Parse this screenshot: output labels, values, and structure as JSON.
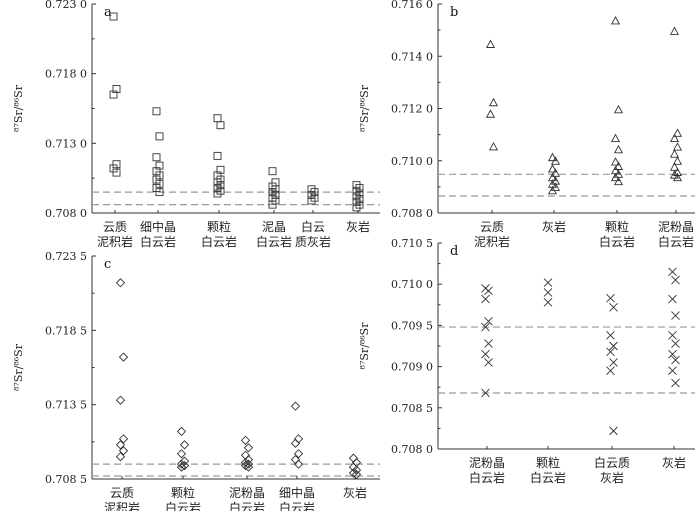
{
  "chart_data": [
    {
      "type": "scatter",
      "panel": "a",
      "ylabel": "⁸⁷Sr/⁸⁶Sr",
      "ylim": [
        0.708,
        0.723
      ],
      "yticks": [
        "0.708 0",
        "0.713 0",
        "0.718 0",
        "0.723 0"
      ],
      "ytick_values": [
        0.708,
        0.713,
        0.718,
        0.723
      ],
      "marker": "square",
      "reference_lines": [
        0.7086,
        0.7095
      ],
      "categories": [
        {
          "label_lines": [
            "云质",
            "泥积岩"
          ],
          "values": [
            0.7221,
            0.7169,
            0.7165,
            0.7115,
            0.7112,
            0.7109
          ]
        },
        {
          "label_lines": [
            "细中晶",
            "白云岩"
          ],
          "values": [
            0.7153,
            0.7135,
            0.712,
            0.7114,
            0.711,
            0.7107,
            0.7104,
            0.7101,
            0.7098,
            0.7095
          ]
        },
        {
          "label_lines": [
            "颗粒",
            "白云岩"
          ],
          "values": [
            0.7148,
            0.7143,
            0.7121,
            0.7111,
            0.7107,
            0.7104,
            0.7102,
            0.71,
            0.7098,
            0.7096,
            0.7094
          ]
        },
        {
          "label_lines": [
            "泥晶",
            "白云岩"
          ],
          "values": [
            0.711,
            0.7102,
            0.7099,
            0.7097,
            0.7095,
            0.7093,
            0.7091,
            0.7089,
            0.7086
          ]
        },
        {
          "label_lines": [
            "白云",
            "质灰岩"
          ],
          "values": [
            0.7097,
            0.7095,
            0.7093,
            0.7091,
            0.7089
          ]
        },
        {
          "label_lines": [
            "灰岩"
          ],
          "values": [
            0.71,
            0.7098,
            0.7096,
            0.7094,
            0.7092,
            0.709,
            0.7088,
            0.7086,
            0.7084
          ]
        }
      ]
    },
    {
      "type": "scatter",
      "panel": "b",
      "ylabel": "⁸⁷Sr/⁸⁶Sr",
      "ylim": [
        0.708,
        0.716
      ],
      "yticks": [
        "0.708 0",
        "0.710 0",
        "0.712 0",
        "0.714 0",
        "0.716 0"
      ],
      "ytick_values": [
        0.708,
        0.71,
        0.712,
        0.714,
        0.716
      ],
      "marker": "triangle",
      "reference_lines": [
        0.70865,
        0.70948
      ],
      "categories": [
        {
          "label_lines": [
            "云质",
            "泥积岩"
          ],
          "values": [
            0.71445,
            0.71222,
            0.71178,
            0.71053
          ]
        },
        {
          "label_lines": [
            "灰岩"
          ],
          "values": [
            0.71012,
            0.70998,
            0.70968,
            0.70952,
            0.70935,
            0.70922,
            0.7091,
            0.70898,
            0.70885
          ]
        },
        {
          "label_lines": [
            "颗粒",
            "白云岩"
          ],
          "values": [
            0.71535,
            0.71195,
            0.71085,
            0.71042,
            0.70995,
            0.70978,
            0.70962,
            0.70948,
            0.70935,
            0.7092
          ]
        },
        {
          "label_lines": [
            "泥粉晶",
            "白云岩"
          ],
          "values": [
            0.71495,
            0.71105,
            0.71085,
            0.71052,
            0.71025,
            0.70998,
            0.70975,
            0.70955,
            0.70945,
            0.70935
          ]
        }
      ]
    },
    {
      "type": "scatter",
      "panel": "c",
      "ylabel": "⁸⁷Sr/⁸⁶Sr",
      "ylim": [
        0.7085,
        0.7235
      ],
      "yticks": [
        "0.708 5",
        "0.713 5",
        "0.718 5",
        "0.723 5"
      ],
      "ytick_values": [
        0.7085,
        0.7135,
        0.7185,
        0.7235
      ],
      "marker": "diamond",
      "reference_lines": [
        0.7087,
        0.7095
      ],
      "categories": [
        {
          "label_lines": [
            "云质",
            "泥积岩"
          ],
          "values": [
            0.7217,
            0.7167,
            0.7138,
            0.7112,
            0.7108,
            0.7104,
            0.71
          ]
        },
        {
          "label_lines": [
            "颗粒",
            "白云岩"
          ],
          "values": [
            0.7117,
            0.7108,
            0.7102,
            0.7097,
            0.7095,
            0.7094,
            0.7093
          ]
        },
        {
          "label_lines": [
            "泥粉晶",
            "白云岩"
          ],
          "values": [
            0.7111,
            0.7106,
            0.7101,
            0.7098,
            0.7096,
            0.7095,
            0.7094,
            0.7093
          ]
        },
        {
          "label_lines": [
            "细中晶",
            "白云岩"
          ],
          "values": [
            0.7134,
            0.7112,
            0.7109,
            0.7102,
            0.7098,
            0.7095
          ]
        },
        {
          "label_lines": [
            "灰岩"
          ],
          "values": [
            0.7099,
            0.7096,
            0.7093,
            0.7091,
            0.7089,
            0.7088
          ]
        }
      ]
    },
    {
      "type": "scatter",
      "panel": "d",
      "ylabel": "⁸⁷Sr/⁸⁶Sr",
      "ylim": [
        0.708,
        0.7105
      ],
      "yticks": [
        "0.708 0",
        "0.708 5",
        "0.709 0",
        "0.709 5",
        "0.710 0",
        "0.710 5"
      ],
      "ytick_values": [
        0.708,
        0.7085,
        0.709,
        0.7095,
        0.71,
        0.7105
      ],
      "marker": "cross",
      "reference_lines": [
        0.70868,
        0.70948
      ],
      "categories": [
        {
          "label_lines": [
            "泥粉晶",
            "白云岩"
          ],
          "values": [
            0.70995,
            0.70992,
            0.70982,
            0.70955,
            0.70948,
            0.70928,
            0.70915,
            0.70905,
            0.70868
          ]
        },
        {
          "label_lines": [
            "颗粒",
            "白云岩"
          ],
          "values": [
            0.71002,
            0.7099,
            0.70978
          ]
        },
        {
          "label_lines": [
            "白云质",
            "灰岩"
          ],
          "values": [
            0.70983,
            0.70972,
            0.70938,
            0.70925,
            0.70918,
            0.70905,
            0.70895,
            0.70822
          ]
        },
        {
          "label_lines": [
            "灰岩"
          ],
          "values": [
            0.71015,
            0.71005,
            0.70982,
            0.70962,
            0.70938,
            0.70928,
            0.70915,
            0.70908,
            0.70895,
            0.7088
          ]
        }
      ]
    }
  ]
}
